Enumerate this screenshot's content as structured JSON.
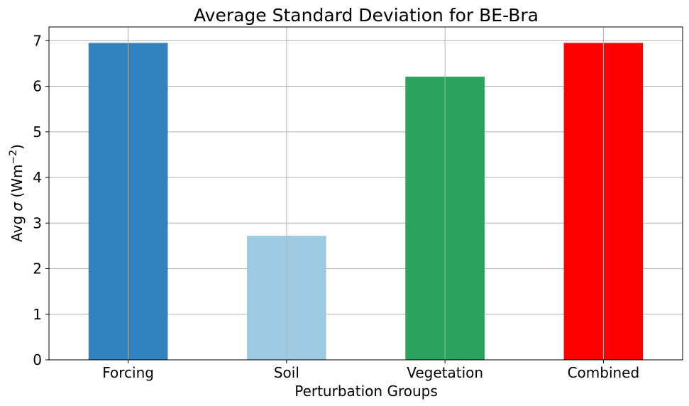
{
  "chart_data": {
    "type": "bar",
    "title": "Average Standard Deviation for BE-Bra",
    "xlabel": "Perturbation Groups",
    "ylabel": {
      "prefix": "Avg ",
      "symbol": "σ",
      "unit_open": " (Wm",
      "unit_exp": "−2",
      "unit_close": ")"
    },
    "categories": [
      "Forcing",
      "Soil",
      "Vegetation",
      "Combined"
    ],
    "values": [
      6.95,
      2.72,
      6.21,
      6.95
    ],
    "colors": [
      "#3182bd",
      "#9ecae1",
      "#2ca25f",
      "#ff0000"
    ],
    "ylim": [
      0,
      7.3
    ],
    "yticks": [
      0,
      1,
      2,
      3,
      4,
      5,
      6,
      7
    ],
    "grid": true,
    "legend": "none"
  }
}
